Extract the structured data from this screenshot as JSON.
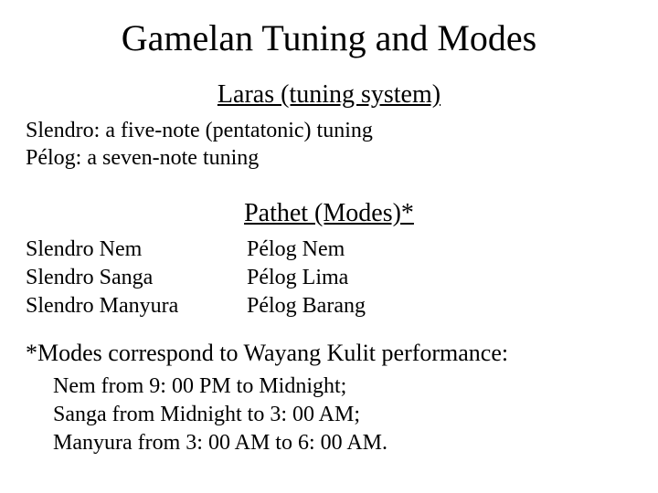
{
  "title": "Gamelan Tuning and Modes",
  "laras": {
    "heading": "Laras (tuning system)",
    "line1": "Slendro: a five-note (pentatonic) tuning",
    "line2": "Pélog: a seven-note tuning"
  },
  "pathet": {
    "heading": "Pathet (Modes)*",
    "left": {
      "l1": "Slendro Nem",
      "l2": "Slendro Sanga",
      "l3": "Slendro Manyura"
    },
    "right": {
      "r1": "Pélog Nem",
      "r2": "Pélog Lima",
      "r3": "Pélog Barang"
    }
  },
  "footnote": {
    "head": "*Modes correspond to Wayang Kulit performance:",
    "b1": "Nem from 9: 00 PM to Midnight;",
    "b2": "Sanga from Midnight to 3: 00 AM;",
    "b3": "Manyura from 3: 00 AM to 6: 00 AM."
  },
  "style": {
    "background": "#ffffff",
    "text_color": "#000000",
    "font_family": "Times New Roman",
    "title_fontsize": 40,
    "subheading_fontsize": 28,
    "body_fontsize": 24,
    "footnote_head_fontsize": 26
  }
}
